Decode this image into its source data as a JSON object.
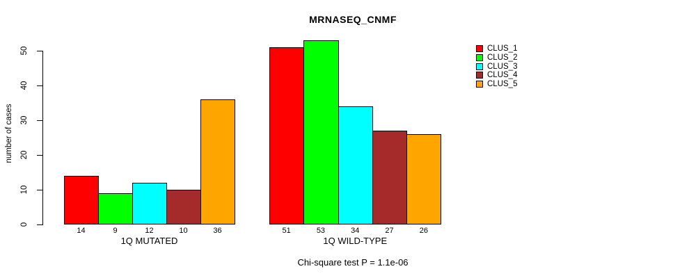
{
  "title": "MRNASEQ_CNMF",
  "chart_data": {
    "type": "bar",
    "title": "MRNASEQ_CNMF",
    "xlabel": "",
    "ylabel": "number of cases",
    "ylim": [
      0,
      50
    ],
    "yticks": [
      0,
      10,
      20,
      30,
      40,
      50
    ],
    "grid": false,
    "legend_position": "top-right",
    "bar_value_labels": true,
    "categories": [
      "1Q MUTATED",
      "1Q WILD-TYPE"
    ],
    "series": [
      {
        "name": "CLUS_1",
        "color": "#FF0000",
        "values": [
          14,
          51
        ]
      },
      {
        "name": "CLUS_2",
        "color": "#00FF00",
        "values": [
          9,
          53
        ]
      },
      {
        "name": "CLUS_3",
        "color": "#00FFFF",
        "values": [
          12,
          34
        ]
      },
      {
        "name": "CLUS_4",
        "color": "#A52A2A",
        "values": [
          10,
          27
        ]
      },
      {
        "name": "CLUS_5",
        "color": "#FFA500",
        "values": [
          36,
          26
        ]
      }
    ],
    "annotation": "Chi-square test P = 1.1e-06"
  }
}
